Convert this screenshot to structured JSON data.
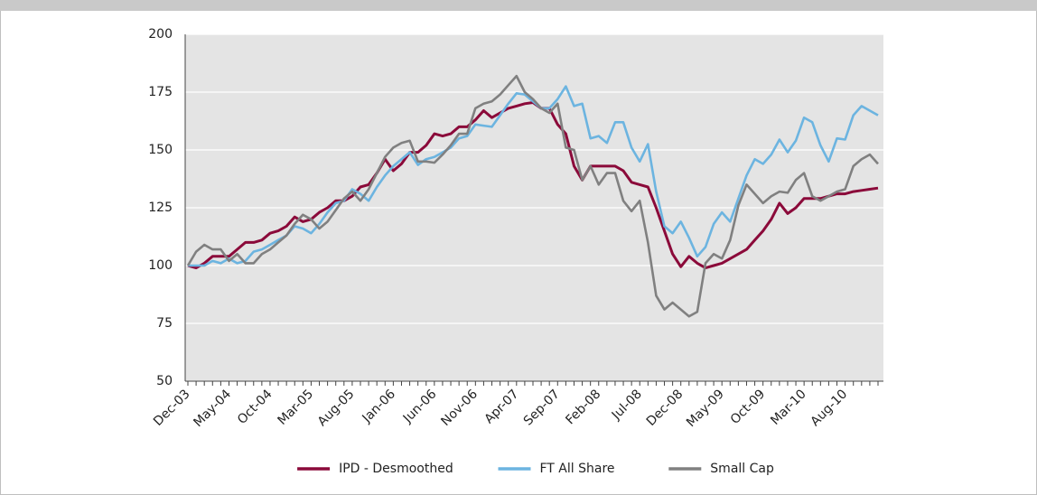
{
  "chart_data": {
    "type": "line",
    "categories": [
      "Dec-03",
      null,
      null,
      null,
      null,
      "May-04",
      null,
      null,
      null,
      null,
      "Oct-04",
      null,
      null,
      null,
      null,
      "Mar-05",
      null,
      null,
      null,
      null,
      "Aug-05",
      null,
      null,
      null,
      null,
      "Jan-06",
      null,
      null,
      null,
      null,
      "Jun-06",
      null,
      null,
      null,
      null,
      "Nov-06",
      null,
      null,
      null,
      null,
      "Apr-07",
      null,
      null,
      null,
      null,
      "Sep-07",
      null,
      null,
      null,
      null,
      "Feb-08",
      null,
      null,
      null,
      null,
      "Jul-08",
      null,
      null,
      null,
      null,
      "Dec-08",
      null,
      null,
      null,
      null,
      "May-09",
      null,
      null,
      null,
      null,
      "Oct-09",
      null,
      null,
      null,
      null,
      "Mar-10",
      null,
      null,
      null,
      null,
      "Aug-10",
      null,
      null,
      null,
      null
    ],
    "series": [
      {
        "name": "IPD - Desmoothed",
        "color": "#8b0a3a",
        "values": [
          100,
          99,
          101,
          104,
          104,
          104,
          107,
          110,
          110,
          111,
          114,
          115,
          117,
          121,
          119,
          120,
          123,
          125,
          128,
          128,
          130,
          134,
          135,
          140,
          146,
          141,
          144,
          149,
          149,
          152,
          157,
          156,
          157,
          160,
          160,
          163,
          167,
          164,
          166,
          168,
          169,
          170,
          170.5,
          168,
          168,
          161,
          157,
          143,
          137,
          143,
          143,
          143,
          143,
          141,
          136,
          135,
          134,
          125,
          115,
          105,
          99.5,
          104,
          101,
          99,
          100,
          101,
          103,
          105,
          107,
          111,
          115,
          120,
          127,
          122.5,
          125,
          129,
          129,
          129,
          130,
          131,
          131,
          132,
          132.5,
          133,
          133.5
        ]
      },
      {
        "name": "FT All Share",
        "color": "#6cb4e0",
        "values": [
          100,
          100,
          100,
          102,
          101,
          103,
          101,
          102,
          106,
          107,
          109,
          111,
          113,
          117,
          116,
          114,
          118,
          123,
          127,
          128,
          133,
          131,
          128,
          134,
          139,
          143,
          146,
          149,
          143.5,
          146,
          147,
          149,
          151,
          155,
          156,
          161,
          160.5,
          160,
          165,
          170,
          174.5,
          174,
          171,
          168,
          168,
          172,
          177.5,
          169,
          170,
          155,
          156,
          153,
          162,
          162,
          151,
          145,
          152.5,
          132,
          117,
          114,
          119,
          112,
          104,
          108,
          118,
          123,
          119,
          129,
          139,
          146,
          144,
          148,
          154.5,
          149,
          154,
          164,
          162,
          152,
          145,
          155,
          154.5,
          165,
          169,
          167,
          165
        ]
      },
      {
        "name": "Small Cap",
        "color": "#808080",
        "values": [
          100,
          106,
          109,
          107,
          107,
          102,
          105,
          101,
          101,
          105,
          107,
          110,
          113,
          118,
          122,
          120,
          116,
          119,
          124,
          129,
          132,
          128,
          133,
          140,
          147,
          151,
          153,
          154,
          145,
          145,
          144.5,
          148,
          152,
          157,
          157,
          168,
          170,
          171,
          174,
          178,
          182,
          175,
          172,
          168,
          166,
          170,
          151,
          150,
          137,
          143,
          135,
          140,
          140,
          128,
          123.5,
          128,
          110,
          87,
          81,
          84,
          81,
          78,
          80,
          101,
          105,
          103,
          111,
          126,
          135,
          131,
          127,
          130,
          132,
          131.5,
          137,
          140,
          130,
          128,
          130,
          132,
          133,
          143,
          146,
          148,
          144
        ]
      }
    ],
    "ylim": [
      50,
      200
    ],
    "yticks": [
      50,
      75,
      100,
      125,
      150,
      175,
      200
    ],
    "grid": true,
    "legend": "bottom"
  }
}
